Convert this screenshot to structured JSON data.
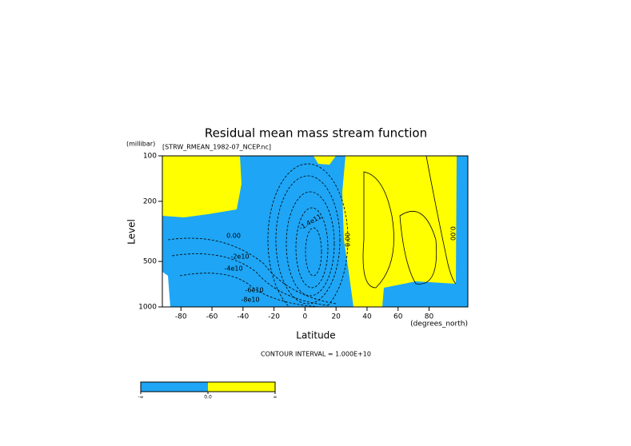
{
  "chart_data": {
    "type": "contour",
    "title": "Residual mean mass stream function",
    "subtitle": "[STRW_RMEAN_1982-07_NCEP.nc]",
    "x_label": "Latitude",
    "x_unit": "(degrees_north)",
    "y_label": "Level",
    "y_unit": "(millibar)",
    "xlim": [
      -92,
      105
    ],
    "xticks": [
      -80,
      -60,
      -40,
      -20,
      0,
      20,
      40,
      60,
      80
    ],
    "ylim": [
      100,
      1000
    ],
    "yticks": [
      100,
      200,
      500,
      1000
    ],
    "y_log": true,
    "y_inverted": true,
    "contour_labels": [
      "0.00",
      "-2e10",
      "-4e10",
      "-6e10",
      "-8e10",
      "-1.4e11",
      "0.00",
      "0.00"
    ],
    "footer": "CONTOUR INTERVAL = 1.000E+10",
    "colorbar": {
      "colors": [
        "#1ea5f5",
        "#ffff00"
      ],
      "labels": [
        "-∞",
        "0.0",
        "∞"
      ]
    }
  }
}
